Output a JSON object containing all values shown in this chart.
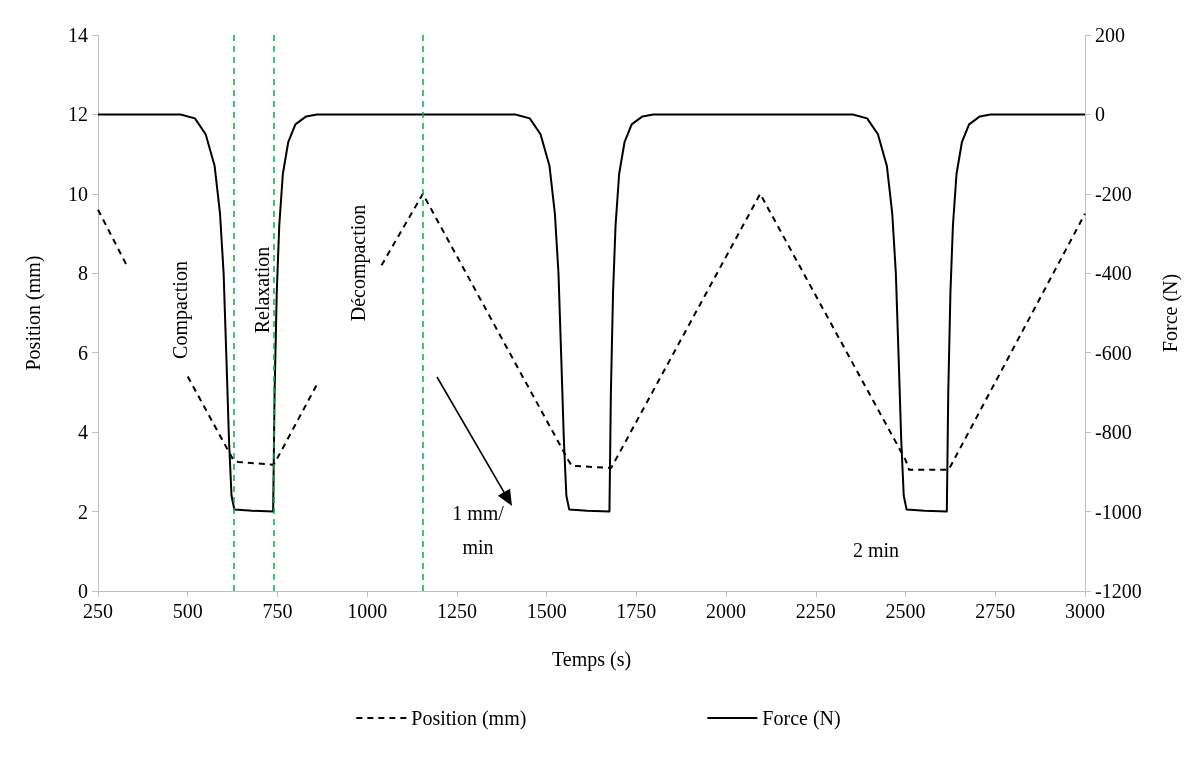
{
  "chart_data": {
    "type": "line",
    "xlabel": "Temps (s)",
    "ylabel": "Position (mm)",
    "y2label": "Force (N)",
    "xlim": [
      250,
      3000
    ],
    "xticks": [
      250,
      500,
      750,
      1000,
      1250,
      1500,
      1750,
      2000,
      2250,
      2500,
      2750,
      3000
    ],
    "ylim": [
      0,
      14
    ],
    "yticks": [
      0,
      2,
      4,
      6,
      8,
      10,
      12,
      14
    ],
    "y2lim": [
      -1200,
      200
    ],
    "y2ticks": [
      -1200,
      -1000,
      -800,
      -600,
      -400,
      -200,
      0,
      200
    ],
    "grid": false,
    "legend": "bottom",
    "marker": "none",
    "series": [
      {
        "name": "Position (mm)",
        "color": "#000000",
        "line_style": "dashed",
        "x": [
          250,
          330,
          415,
          500,
          627,
          640,
          740,
          860,
          950,
          1040,
          1155,
          1560,
          1570,
          1680,
          2095,
          2500,
          2510,
          2620,
          3000
        ],
        "values": [
          9.6,
          8.2,
          null,
          5.4,
          3.3,
          3.25,
          3.18,
          5.2,
          null,
          8.2,
          10.0,
          3.3,
          3.15,
          3.1,
          10.0,
          3.3,
          3.05,
          3.05,
          9.5
        ]
      },
      {
        "name": "Force (N)",
        "color": "#000000",
        "line_style": "solid",
        "axis": "y2",
        "x": [
          250,
          480,
          520,
          550,
          575,
          590,
          600,
          608,
          615,
          622,
          630,
          680,
          738,
          742,
          748,
          755,
          765,
          780,
          800,
          830,
          860,
          1413,
          1453,
          1483,
          1508,
          1523,
          1533,
          1541,
          1548,
          1555,
          1563,
          1613,
          1675,
          1679,
          1685,
          1692,
          1702,
          1717,
          1737,
          1767,
          1797,
          2353,
          2393,
          2423,
          2448,
          2463,
          2473,
          2481,
          2488,
          2495,
          2503,
          2553,
          2615,
          2619,
          2625,
          2632,
          2642,
          2657,
          2677,
          2707,
          2737,
          3000
        ],
        "values": [
          0,
          0,
          -10,
          -50,
          -130,
          -250,
          -400,
          -620,
          -820,
          -960,
          -995,
          -998,
          -1000,
          -700,
          -450,
          -280,
          -150,
          -70,
          -25,
          -5,
          0,
          0,
          -10,
          -50,
          -130,
          -250,
          -400,
          -620,
          -820,
          -960,
          -995,
          -998,
          -1000,
          -700,
          -450,
          -280,
          -150,
          -70,
          -25,
          -5,
          0,
          0,
          -10,
          -50,
          -130,
          -250,
          -400,
          -620,
          -820,
          -960,
          -995,
          -998,
          -1000,
          -700,
          -450,
          -280,
          -150,
          -70,
          -25,
          -5,
          0,
          0
        ]
      }
    ],
    "ref_lines": [
      {
        "axis": "x",
        "value": 627,
        "color": "#00b050",
        "line_style": "dashed"
      },
      {
        "axis": "x",
        "value": 740,
        "color": "#00b050",
        "line_style": "dashed"
      },
      {
        "axis": "x",
        "value": 1155,
        "color": "#00b050",
        "line_style": "dashed"
      }
    ],
    "annotations": [
      "Compaction",
      "Relaxation",
      "Décompaction",
      "1 mm/\nmin",
      "2 min"
    ]
  }
}
